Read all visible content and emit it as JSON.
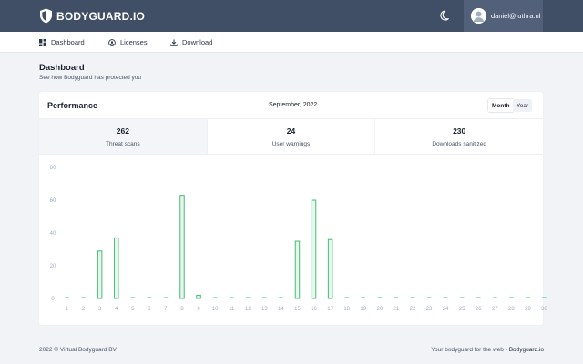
{
  "brand": {
    "name": "BODYGUARD.IO"
  },
  "user": {
    "email": "daniel@luthra.nl"
  },
  "nav": {
    "dashboard": "Dashboard",
    "licenses": "Licenses",
    "download": "Download"
  },
  "page": {
    "title": "Dashboard",
    "subtitle": "See how Bodyguard has protected you"
  },
  "performance": {
    "title": "Performance",
    "period": "September, 2022",
    "toggle_month": "Month",
    "toggle_year": "Year",
    "selected_toggle": "Month",
    "stats": [
      {
        "value": "262",
        "label": "Threat scans"
      },
      {
        "value": "24",
        "label": "User warnings"
      },
      {
        "value": "230",
        "label": "Downloads sanitized"
      }
    ]
  },
  "chart_data": {
    "type": "bar",
    "categories": [
      "1",
      "2",
      "3",
      "4",
      "5",
      "6",
      "7",
      "8",
      "9",
      "10",
      "11",
      "12",
      "13",
      "14",
      "15",
      "16",
      "17",
      "18",
      "19",
      "20",
      "21",
      "22",
      "23",
      "24",
      "25",
      "26",
      "27",
      "28",
      "29",
      "30"
    ],
    "values": [
      0,
      0,
      29,
      37,
      0,
      0,
      0,
      63,
      2,
      0,
      0,
      0,
      0,
      0,
      35,
      60,
      36,
      0,
      0,
      0,
      0,
      0,
      0,
      0,
      0,
      0,
      0,
      0,
      0,
      0
    ],
    "ylim": [
      0,
      80
    ],
    "yticks": [
      0,
      20,
      40,
      60,
      80
    ],
    "grid": false,
    "color": "#48bb78"
  },
  "footer": {
    "copyright": "2022 © Virtual Bodyguard BV",
    "tagline": "Your bodyguard for the web - ",
    "link": "Bodyguard.io"
  },
  "colors": {
    "topbar": "#414f66",
    "accent_green": "#48bb78"
  },
  "icons": {
    "logo": "shield-logo-icon",
    "theme": "moon-icon",
    "dashboard": "dashboard-grid-icon",
    "licenses": "license-badge-icon",
    "download": "download-icon"
  }
}
